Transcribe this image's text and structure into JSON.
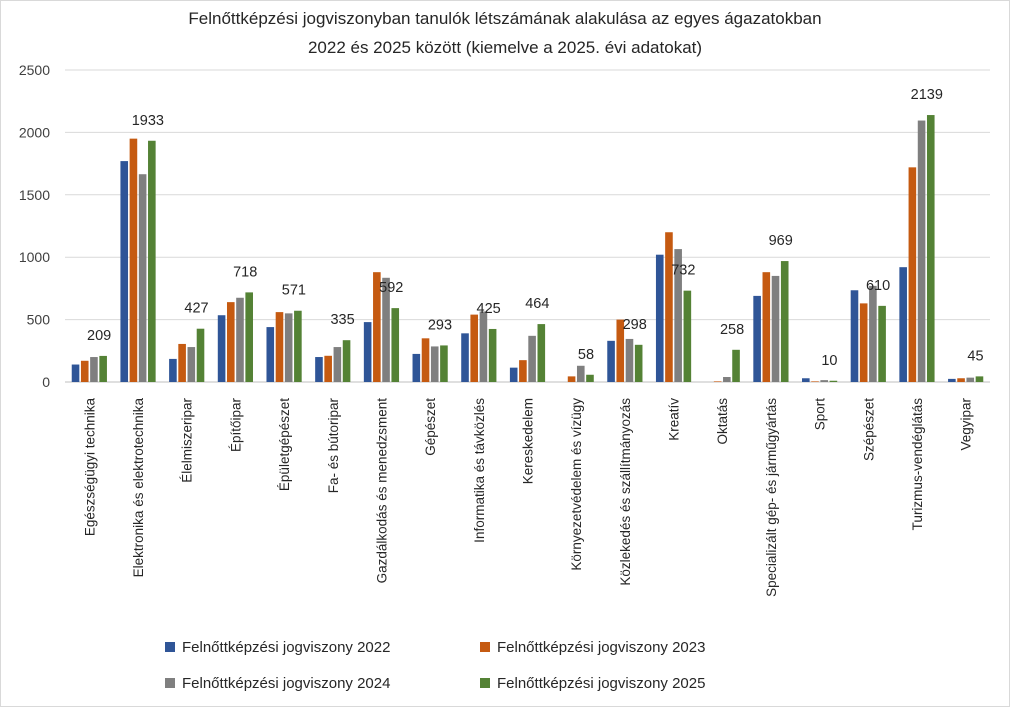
{
  "chart_data": {
    "type": "bar",
    "title_lines": [
      "Felnőttképzési jogviszonyban tanulók létszámának alakulása az egyes ágazatokban",
      "2022 és 2025 között (kiemelve a 2025. évi adatokat)"
    ],
    "ylim": [
      0,
      2500
    ],
    "yticks": [
      0,
      500,
      1000,
      1500,
      2000,
      2500
    ],
    "grid": true,
    "legend_position": "bottom",
    "categories": [
      "Egészségügyi technika",
      "Elektronika és elektrotechnika",
      "Élelmiszeripar",
      "Építőipar",
      "Épületgépészet",
      "Fa- és bútoripar",
      "Gazdálkodás és menedzsment",
      "Gépészet",
      "Informatika és távközlés",
      "Kereskedelem",
      "Környezetvédelem és vízügy",
      "Közlekedés és szállítmányozás",
      "Kreatív",
      "Oktatás",
      "Specializált gép- és járműgyártás",
      "Sport",
      "Szépészet",
      "Turizmus-vendéglátás",
      "Vegyipar"
    ],
    "series": [
      {
        "name": "Felnőttképzési jogviszony 2022",
        "color": "#2f5597",
        "values": [
          140,
          1770,
          185,
          535,
          440,
          200,
          480,
          225,
          390,
          115,
          0,
          330,
          1020,
          0,
          690,
          30,
          735,
          920,
          25
        ]
      },
      {
        "name": "Felnőttképzési jogviszony 2023",
        "color": "#c55a11",
        "values": [
          170,
          1950,
          305,
          640,
          560,
          210,
          880,
          350,
          540,
          175,
          45,
          500,
          1200,
          5,
          880,
          5,
          630,
          1720,
          30
        ]
      },
      {
        "name": "Felnőttképzési jogviszony 2024",
        "color": "#7f7f7f",
        "values": [
          200,
          1665,
          280,
          675,
          550,
          280,
          835,
          285,
          565,
          370,
          130,
          345,
          1065,
          40,
          850,
          15,
          770,
          2095,
          35
        ]
      },
      {
        "name": "Felnőttképzési jogviszony 2025",
        "color": "#548235",
        "values": [
          209,
          1933,
          427,
          718,
          571,
          335,
          592,
          293,
          425,
          464,
          58,
          298,
          732,
          258,
          969,
          10,
          610,
          2139,
          45
        ]
      }
    ],
    "highlight_series": 3,
    "data_labels": [
      "209",
      "1933",
      "427",
      "718",
      "571",
      "335",
      "592",
      "293",
      "425",
      "464",
      "58",
      "298",
      "732",
      "258",
      "969",
      "10",
      "610",
      "2139",
      "45"
    ]
  }
}
